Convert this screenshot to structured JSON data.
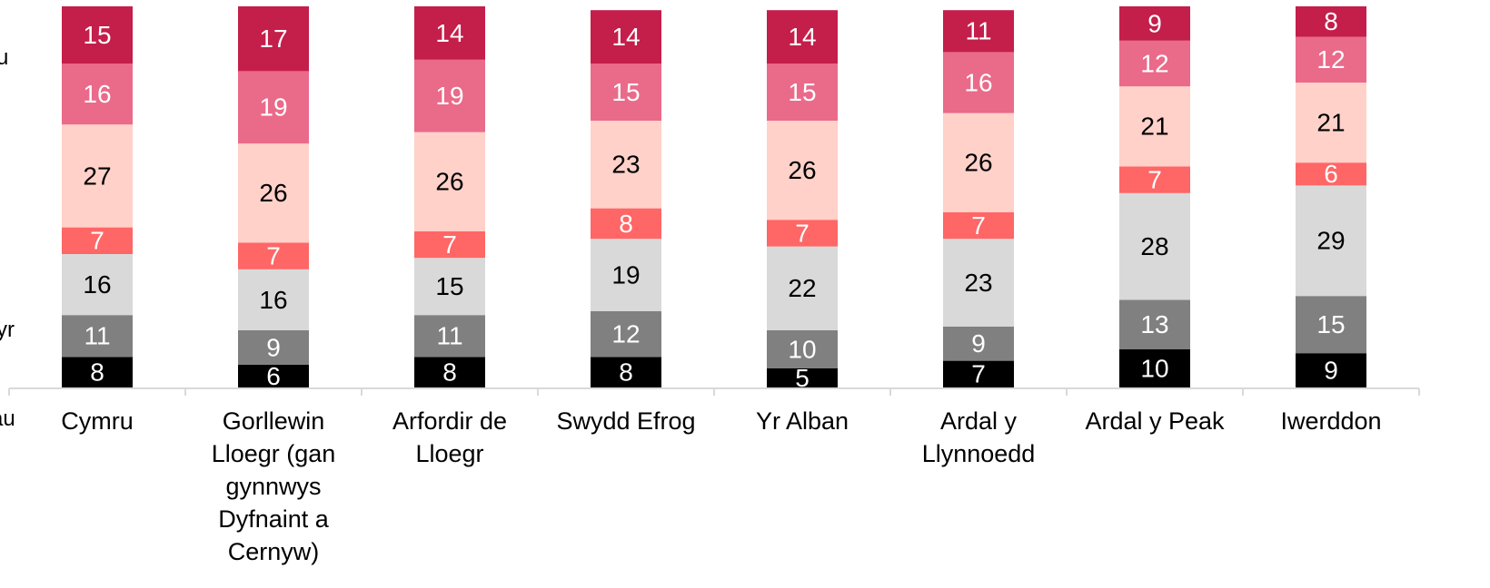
{
  "chart_data": {
    "type": "stacked_bar",
    "categories": [
      "Cymru",
      "Gorllewin Lloegr (gan gynnwys Dyfnaint a Cernyw)",
      "Arfordir de Lloegr",
      "Swydd Efrog",
      "Yr Alban",
      "Ardal y Llynnoedd",
      "Ardal y Peak",
      "Iwerddon"
    ],
    "series": [
      {
        "color": "#000000",
        "values": [
          8,
          6,
          8,
          8,
          5,
          7,
          10,
          9
        ]
      },
      {
        "color": "#808080",
        "values": [
          11,
          9,
          11,
          12,
          10,
          9,
          13,
          15
        ]
      },
      {
        "color": "#d9d9d9",
        "values": [
          16,
          16,
          15,
          19,
          22,
          23,
          28,
          29
        ]
      },
      {
        "color": "#ff6666",
        "values": [
          7,
          7,
          7,
          8,
          7,
          7,
          7,
          6
        ]
      },
      {
        "color": "#ffd1c9",
        "values": [
          27,
          26,
          26,
          23,
          26,
          26,
          21,
          21
        ]
      },
      {
        "color": "#ea6a8a",
        "values": [
          16,
          19,
          19,
          15,
          15,
          16,
          12,
          12
        ]
      },
      {
        "color": "#c41e4a",
        "values": [
          15,
          17,
          14,
          14,
          14,
          11,
          9,
          8
        ]
      }
    ],
    "ylim": [
      0,
      100
    ],
    "annotations": [
      "u",
      "yr",
      "au"
    ]
  }
}
